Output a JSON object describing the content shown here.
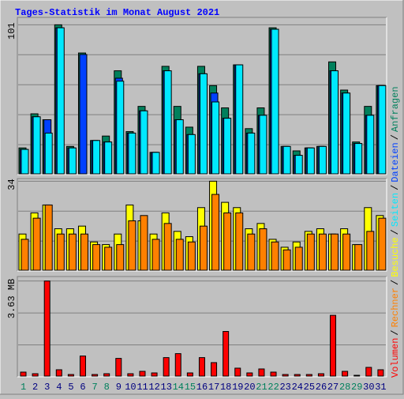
{
  "title": "Tages-Statistik im Monat August 2021",
  "legend_separator": "/",
  "chart_data": [
    {
      "type": "bar",
      "series": [
        {
          "name": "Anfragen",
          "color": "#00805c",
          "values": [
            18,
            41,
            37,
            101,
            19,
            82,
            23,
            26,
            70,
            29,
            46,
            15,
            73,
            46,
            32,
            73,
            60,
            45,
            74,
            31,
            45,
            99,
            19,
            16,
            18,
            19,
            76,
            57,
            22,
            46,
            60
          ]
        },
        {
          "name": "Dateien",
          "color": "#0040ff",
          "values": [
            17,
            39,
            37,
            99,
            18,
            81,
            23,
            22,
            65,
            28,
            43,
            15,
            70,
            37,
            27,
            68,
            55,
            38,
            74,
            28,
            40,
            98,
            19,
            13,
            18,
            19,
            70,
            55,
            21,
            40,
            60
          ]
        },
        {
          "name": "Seiten",
          "color": "#00e8ff",
          "values": [
            17,
            39,
            28,
            99,
            18,
            0,
            23,
            22,
            63,
            28,
            43,
            15,
            70,
            37,
            27,
            68,
            49,
            38,
            74,
            28,
            40,
            98,
            19,
            13,
            18,
            19,
            70,
            55,
            21,
            40,
            60
          ]
        }
      ],
      "ylim": [
        0,
        106
      ],
      "yticks": [
        101
      ]
    },
    {
      "type": "bar",
      "series": [
        {
          "name": "Besuche",
          "color": "#ffff00",
          "values": [
            14,
            22,
            25,
            16,
            16,
            17,
            11,
            10,
            14,
            25,
            19,
            14,
            22,
            15,
            13,
            24,
            34,
            26,
            24,
            16,
            18,
            12,
            9,
            11,
            15,
            16,
            14,
            16,
            10,
            24,
            21
          ]
        },
        {
          "name": "Rechner",
          "color": "#ff8000",
          "values": [
            12,
            20,
            25,
            14,
            14,
            14,
            10,
            9,
            10,
            19,
            21,
            12,
            18,
            12,
            11,
            17,
            29,
            22,
            22,
            14,
            16,
            11,
            8,
            9,
            14,
            14,
            14,
            14,
            10,
            15,
            20
          ]
        }
      ],
      "ylim": [
        0,
        35
      ],
      "yticks": [
        34
      ]
    },
    {
      "type": "bar",
      "categories": [
        "1",
        "2",
        "3",
        "4",
        "5",
        "6",
        "7",
        "8",
        "9",
        "10",
        "11",
        "12",
        "13",
        "14",
        "15",
        "16",
        "17",
        "18",
        "19",
        "20",
        "21",
        "22",
        "23",
        "24",
        "25",
        "26",
        "27",
        "28",
        "29",
        "30",
        "31"
      ],
      "category_colors": [
        "#00805c",
        "#000080",
        "#000080",
        "#000080",
        "#000080",
        "#000080",
        "#00805c",
        "#00805c",
        "#000080",
        "#000080",
        "#000080",
        "#000080",
        "#000080",
        "#00805c",
        "#00805c",
        "#000080",
        "#000080",
        "#000080",
        "#000080",
        "#000080",
        "#00805c",
        "#00805c",
        "#000080",
        "#000080",
        "#000080",
        "#000080",
        "#000080",
        "#00805c",
        "#00805c",
        "#000080",
        "#000080"
      ],
      "series": [
        {
          "name": "Volumen",
          "color": "#ff0000",
          "values": [
            0.18,
            0.12,
            3.63,
            0.27,
            0.09,
            0.79,
            0.09,
            0.12,
            0.7,
            0.12,
            0.21,
            0.15,
            0.73,
            0.88,
            0.15,
            0.73,
            0.54,
            1.72,
            0.33,
            0.15,
            0.3,
            0.18,
            0.09,
            0.09,
            0.09,
            0.12,
            2.33,
            0.21,
            0.06,
            0.36,
            0.27
          ]
        }
      ],
      "ylim": [
        0,
        3.8
      ],
      "yticks": [
        {
          "value": 3.63,
          "label": "3.63 MB"
        }
      ]
    }
  ]
}
